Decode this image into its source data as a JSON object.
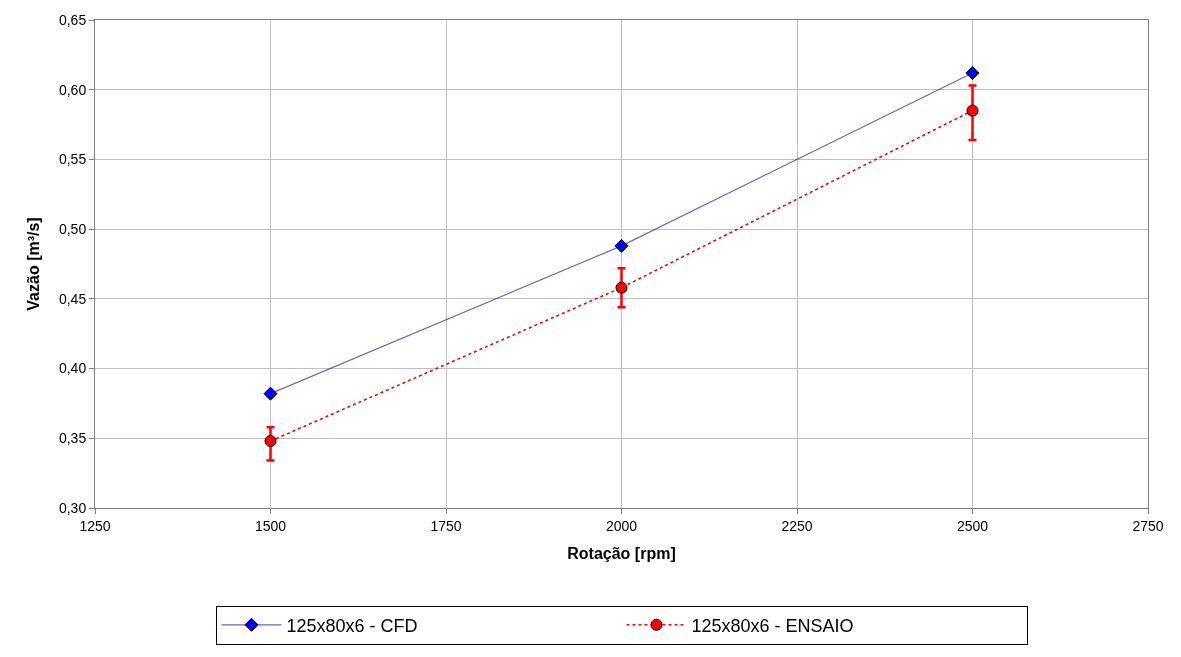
{
  "chart_data": {
    "type": "line",
    "xlabel": "Rotação [rpm]",
    "ylabel": "Vazão [m³/s]",
    "x": [
      1500,
      2000,
      2500
    ],
    "series": [
      {
        "name": "125x80x6 - CFD",
        "color": "#0000ff",
        "marker": "diamond",
        "line_style": "solid",
        "values": [
          0.382,
          0.488,
          0.612
        ]
      },
      {
        "name": "125x80x6 - ENSAIO",
        "color": "#ff0000",
        "marker": "circle",
        "line_style": "dotted",
        "values": [
          0.348,
          0.458,
          0.585
        ],
        "errors": [
          [
            0.334,
            0.358
          ],
          [
            0.444,
            0.472
          ],
          [
            0.564,
            0.603
          ]
        ]
      }
    ],
    "xlim": [
      1250,
      2750
    ],
    "xticks": [
      1250,
      1500,
      1750,
      2000,
      2250,
      2500,
      2750
    ],
    "ylim": [
      0.3,
      0.65
    ],
    "yticks": [
      {
        "value": 0.3,
        "label": "0,30"
      },
      {
        "value": 0.35,
        "label": "0,35"
      },
      {
        "value": 0.4,
        "label": "0,40"
      },
      {
        "value": 0.45,
        "label": "0,45"
      },
      {
        "value": 0.5,
        "label": "0,50"
      },
      {
        "value": 0.55,
        "label": "0,55"
      },
      {
        "value": 0.6,
        "label": "0,60"
      },
      {
        "value": 0.65,
        "label": "0,65"
      }
    ],
    "grid": true,
    "legend": "bottom"
  }
}
